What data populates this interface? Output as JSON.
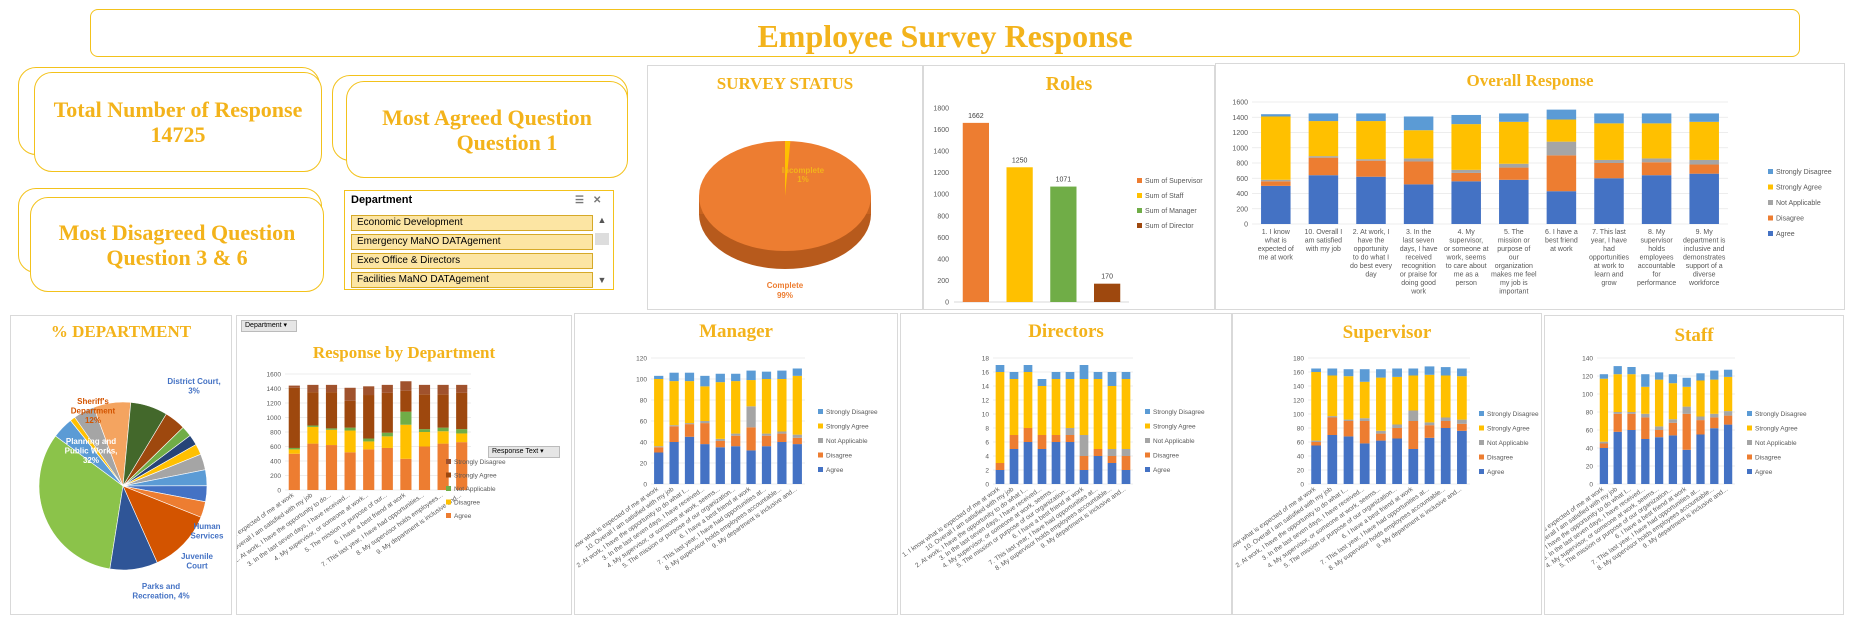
{
  "header": {
    "title": "Employee Survey Response"
  },
  "kpis": {
    "total": {
      "label": "Total Number of Response",
      "value": "14725"
    },
    "agreed": {
      "label": "Most Agreed Question",
      "value": "Question 1"
    },
    "disagreed": {
      "label": "Most Disagreed Question",
      "value": "Question 3 & 6"
    }
  },
  "slicer": {
    "title": "Department",
    "items": [
      "Economic Development",
      "Emergency MaNO DATAgement",
      "Exec Office & Directors",
      "Facilities MaNO DATAgement"
    ]
  },
  "colors": {
    "agree": "#4472c4",
    "disagree": "#ed7d31",
    "na": "#a5a5a5",
    "sagree": "#ffc000",
    "sdisagree": "#5b9bd5",
    "green": "#70ad47",
    "darkred": "#9e480e",
    "darkgreen": "#43682b",
    "gold": "#f3b31b"
  },
  "labels": {
    "pivot_dept_button": "Department",
    "pivot_resp_button": "Response Text"
  },
  "chart_data": [
    {
      "id": "survey_status",
      "type": "pie",
      "title": "SURVEY STATUS",
      "slices": [
        {
          "name": "Complete",
          "value": 99,
          "label": "Complete",
          "pct": "99%",
          "color": "#ed7d31"
        },
        {
          "name": "Incomplete",
          "value": 1,
          "label": "Incomplete",
          "pct": "1%",
          "color": "#ffc000"
        }
      ]
    },
    {
      "id": "roles",
      "type": "bar",
      "title": "Roles",
      "ylim": [
        0,
        1800
      ],
      "yticks": [
        "0",
        "200",
        "400",
        "600",
        "800",
        "1000",
        "1200",
        "1400",
        "1600",
        "1800"
      ],
      "categories": [
        "Sum of Supervisor",
        "Sum of Staff",
        "Sum of Manager",
        "Sum of Director"
      ],
      "values": [
        1662,
        1250,
        1071,
        170
      ],
      "colors": [
        "#ed7d31",
        "#ffc000",
        "#70ad47",
        "#9e480e"
      ]
    },
    {
      "id": "overall",
      "type": "bar",
      "stacked": true,
      "title": "Overall Response",
      "ylim": [
        0,
        1600
      ],
      "yticks": [
        "0",
        "200",
        "400",
        "600",
        "800",
        "1000",
        "1200",
        "1400",
        "1600"
      ],
      "categories": [
        "1. I know what is expected of me at work",
        "10. Overall I am satisfied with my job",
        "2. At work, I have the opportunity to do what I do best every day",
        "3. In the last seven days, I have received recognition or praise for doing good work",
        "4. My supervisor, or someone at work, seems to care about me as a person",
        "5. The mission or purpose of our organization makes me feel my job is important",
        "6. I have a best friend at work",
        "7. This last year, I have had opportunities at work to learn and grow",
        "8. My supervisor holds employees accountable for performance",
        "9. My department is inclusive and demonstrates support of a diverse workforce"
      ],
      "series": [
        {
          "name": "Agree",
          "color": "#4472c4",
          "values": [
            500,
            640,
            620,
            520,
            560,
            580,
            430,
            600,
            640,
            660
          ]
        },
        {
          "name": "Disagree",
          "color": "#ed7d31",
          "values": [
            60,
            230,
            210,
            300,
            110,
            160,
            470,
            200,
            170,
            120
          ]
        },
        {
          "name": "Not Applicable",
          "color": "#a5a5a5",
          "values": [
            20,
            20,
            20,
            40,
            40,
            50,
            180,
            40,
            50,
            60
          ]
        },
        {
          "name": "Strongly Agree",
          "color": "#ffc000",
          "values": [
            830,
            460,
            500,
            370,
            600,
            550,
            290,
            480,
            460,
            500
          ]
        },
        {
          "name": "Strongly Disagree",
          "color": "#5b9bd5",
          "values": [
            30,
            100,
            100,
            180,
            120,
            110,
            130,
            130,
            130,
            110
          ]
        }
      ],
      "legend": [
        "Strongly Disagree",
        "Strongly Agree",
        "Not Applicable",
        "Disagree",
        "Agree"
      ]
    },
    {
      "id": "pct_department",
      "type": "pie",
      "title": "% DEPARTMENT",
      "slices": [
        {
          "name": "Planning and Public Works",
          "value": 32,
          "label": "Planning and Public Works, 32%",
          "color": "#8bc34a"
        },
        {
          "name": "Parks and Recreation",
          "value": 4,
          "label": "Parks and Recreation, 4%",
          "color": "#5b9bd5"
        },
        {
          "name": "Juvenile Court",
          "value": 1,
          "label": "Juvenile Court",
          "color": "#ffc000"
        },
        {
          "name": "Human Services",
          "value": 4,
          "label": "Human Services",
          "color": "#a5a5a5"
        },
        {
          "name": "s5",
          "value": 7,
          "label": "",
          "color": "#f4a460"
        },
        {
          "name": "s6",
          "value": 7,
          "label": "",
          "color": "#43682b"
        },
        {
          "name": "s7",
          "value": 4,
          "label": "",
          "color": "#9e480e"
        },
        {
          "name": "s8",
          "value": 2,
          "label": "",
          "color": "#70ad47"
        },
        {
          "name": "s9",
          "value": 2,
          "label": "",
          "color": "#264478"
        },
        {
          "name": "s10",
          "value": 2,
          "label": "",
          "color": "#ffc000"
        },
        {
          "name": "s11",
          "value": 3,
          "label": "",
          "color": "#a5a5a5"
        },
        {
          "name": "s12",
          "value": 3,
          "label": "",
          "color": "#5b9bd5"
        },
        {
          "name": "District Court",
          "value": 3,
          "label": "District Court, 3%",
          "color": "#4472c4"
        },
        {
          "name": "s14",
          "value": 3,
          "label": "",
          "color": "#ed7d31"
        },
        {
          "name": "Sheriff's Department",
          "value": 12,
          "label": "Sheriff's Department 12%",
          "color": "#d35400"
        },
        {
          "name": "s16",
          "value": 9,
          "label": "",
          "color": "#2f5597"
        }
      ]
    },
    {
      "id": "response_by_department",
      "type": "bar",
      "stacked": true,
      "title": "Response by Department",
      "ylim": [
        0,
        1600
      ],
      "yticks": [
        "0",
        "200",
        "400",
        "600",
        "800",
        "1000",
        "1200",
        "1400",
        "1600"
      ],
      "categories": [
        "1. I know what is expected of me at work",
        "10. Overall I am satisfied with my job",
        "2. At work, I have the opportunity to do...",
        "3. In the last seven days, I have received...",
        "4. My supervisor, or someone at work...",
        "5. The mission or purpose of our...",
        "6. I have a best friend at work",
        "7. This last year, I have had opportunities...",
        "8. My supervisor holds employees...",
        "9. My department is inclusive and..."
      ],
      "series": [
        {
          "name": "Agree",
          "color": "#ed7d31",
          "values": [
            500,
            640,
            620,
            520,
            560,
            580,
            430,
            600,
            640,
            660
          ]
        },
        {
          "name": "Disagree",
          "color": "#ffc000",
          "values": [
            60,
            230,
            210,
            300,
            110,
            160,
            470,
            200,
            170,
            120
          ]
        },
        {
          "name": "Not Applicable",
          "color": "#70ad47",
          "values": [
            20,
            20,
            20,
            40,
            40,
            50,
            180,
            40,
            50,
            60
          ]
        },
        {
          "name": "Strongly Agree",
          "color": "#9e480e",
          "values": [
            830,
            460,
            500,
            370,
            600,
            550,
            290,
            480,
            460,
            500
          ]
        },
        {
          "name": "Strongly Disagree",
          "color": "#a0522d",
          "values": [
            30,
            100,
            100,
            180,
            120,
            110,
            130,
            130,
            130,
            110
          ]
        }
      ],
      "legend": [
        "Strongly Disagree",
        "Strongly Agree",
        "Not Applicable",
        "Disagree",
        "Agree"
      ]
    },
    {
      "id": "manager",
      "type": "bar",
      "stacked": true,
      "title": "Manager",
      "ylim": [
        0,
        120
      ],
      "yticks": [
        "0",
        "20",
        "40",
        "60",
        "80",
        "100",
        "120"
      ],
      "categories": [
        "1. I know what is expected of me at work",
        "10. Overall I am satisfied with my job",
        "2. At work, I have the opportunity to do what I...",
        "3. In the last seven days, I have received...",
        "4. My supervisor, or someone at work, seems...",
        "5. The mission or purpose of our organization...",
        "6. I have a best friend at work",
        "7. This last year, I have had opportunities at...",
        "8. My supervisor holds employees accountable...",
        "9. My department is inclusive and..."
      ],
      "series": [
        {
          "name": "Agree",
          "color": "#4472c4",
          "values": [
            30,
            40,
            45,
            38,
            35,
            36,
            32,
            36,
            40,
            38
          ]
        },
        {
          "name": "Disagree",
          "color": "#ed7d31",
          "values": [
            5,
            15,
            12,
            20,
            6,
            10,
            22,
            10,
            8,
            6
          ]
        },
        {
          "name": "Not Applicable",
          "color": "#a5a5a5",
          "values": [
            1,
            1,
            1,
            2,
            2,
            2,
            20,
            2,
            2,
            3
          ]
        },
        {
          "name": "Strongly Agree",
          "color": "#ffc000",
          "values": [
            64,
            42,
            40,
            33,
            54,
            50,
            25,
            52,
            50,
            56
          ]
        },
        {
          "name": "Strongly Disagree",
          "color": "#5b9bd5",
          "values": [
            3,
            8,
            8,
            10,
            8,
            7,
            9,
            7,
            8,
            7
          ]
        }
      ],
      "legend": [
        "Strongly Disagree",
        "Strongly Agree",
        "Not Applicable",
        "Disagree",
        "Agree"
      ]
    },
    {
      "id": "directors",
      "type": "bar",
      "stacked": true,
      "title": "Directors",
      "ylim": [
        0,
        18
      ],
      "yticks": [
        "0",
        "2",
        "4",
        "6",
        "8",
        "10",
        "12",
        "14",
        "16",
        "18"
      ],
      "categories": [
        "1. I know what is expected of me at work",
        "10. Overall I am satisfied with my job",
        "2. At work, I have the opportunity to do what I...",
        "3. In the last seven days, I have received...",
        "4. My supervisor, or someone at work, seems...",
        "5. The mission or purpose of our organization...",
        "6. I have a best friend at work",
        "7. This last year, I have had opportunities at...",
        "8. My supervisor holds employees accountable...",
        "9. My department is inclusive and..."
      ],
      "series": [
        {
          "name": "Agree",
          "color": "#4472c4",
          "values": [
            2,
            5,
            6,
            5,
            6,
            6,
            2,
            4,
            3,
            2
          ]
        },
        {
          "name": "Disagree",
          "color": "#ed7d31",
          "values": [
            1,
            2,
            2,
            2,
            1,
            1,
            2,
            1,
            1,
            2
          ]
        },
        {
          "name": "Not Applicable",
          "color": "#a5a5a5",
          "values": [
            0,
            0,
            0,
            0,
            0,
            1,
            3,
            0,
            1,
            1
          ]
        },
        {
          "name": "Strongly Agree",
          "color": "#ffc000",
          "values": [
            13,
            8,
            8,
            7,
            8,
            7,
            8,
            10,
            9,
            10
          ]
        },
        {
          "name": "Strongly Disagree",
          "color": "#5b9bd5",
          "values": [
            1,
            1,
            1,
            1,
            1,
            1,
            2,
            1,
            2,
            1
          ]
        }
      ],
      "legend": [
        "Strongly Disagree",
        "Strongly Agree",
        "Not Applicable",
        "Disagree",
        "Agree"
      ]
    },
    {
      "id": "supervisor",
      "type": "bar",
      "stacked": true,
      "title": "Supervisor",
      "ylim": [
        0,
        180
      ],
      "yticks": [
        "0",
        "20",
        "40",
        "60",
        "80",
        "100",
        "120",
        "140",
        "160",
        "180"
      ],
      "categories": [
        "1. I know what is expected of me at work",
        "10. Overall I am satisfied with my job",
        "2. At work, I have the opportunity to do what I...",
        "3. In the last seven days, I have received...",
        "4. My supervisor, or someone at work, seems...",
        "5. The mission or purpose of our organization...",
        "6. I have a best friend at work",
        "7. This last year, I have had opportunities at...",
        "8. My supervisor holds employees accountable...",
        "9. My department is inclusive and..."
      ],
      "series": [
        {
          "name": "Agree",
          "color": "#4472c4",
          "values": [
            55,
            70,
            68,
            58,
            62,
            65,
            50,
            66,
            80,
            76
          ]
        },
        {
          "name": "Disagree",
          "color": "#ed7d31",
          "values": [
            5,
            25,
            22,
            32,
            10,
            15,
            40,
            18,
            10,
            10
          ]
        },
        {
          "name": "Not Applicable",
          "color": "#a5a5a5",
          "values": [
            2,
            2,
            2,
            4,
            4,
            5,
            15,
            4,
            5,
            6
          ]
        },
        {
          "name": "Strongly Agree",
          "color": "#ffc000",
          "values": [
            98,
            58,
            62,
            52,
            76,
            68,
            50,
            68,
            60,
            62
          ]
        },
        {
          "name": "Strongly Disagree",
          "color": "#5b9bd5",
          "values": [
            5,
            10,
            10,
            18,
            12,
            12,
            10,
            12,
            12,
            11
          ]
        }
      ],
      "legend": [
        "Strongly Disagree",
        "Strongly Agree",
        "Not Applicable",
        "Disagree",
        "Agree"
      ]
    },
    {
      "id": "staff",
      "type": "bar",
      "stacked": true,
      "title": "Staff",
      "ylim": [
        0,
        140
      ],
      "yticks": [
        "0",
        "20",
        "40",
        "60",
        "80",
        "100",
        "120",
        "140"
      ],
      "categories": [
        "1. I know what is expected of me at work",
        "10. Overall I am satisfied with my job",
        "2. At work, I have the opportunity to do what I...",
        "3. In the last seven days, I have received...",
        "4. My supervisor, or someone at work, seems...",
        "5. The mission or purpose of our organization...",
        "6. I have a best friend at work",
        "7. This last year, I have had opportunities at...",
        "8. My supervisor holds employees accountable...",
        "9. My department is inclusive and..."
      ],
      "series": [
        {
          "name": "Agree",
          "color": "#4472c4",
          "values": [
            40,
            58,
            60,
            50,
            52,
            54,
            38,
            55,
            62,
            66
          ]
        },
        {
          "name": "Disagree",
          "color": "#ed7d31",
          "values": [
            5,
            20,
            18,
            24,
            8,
            14,
            40,
            16,
            12,
            10
          ]
        },
        {
          "name": "Not Applicable",
          "color": "#a5a5a5",
          "values": [
            2,
            2,
            2,
            4,
            4,
            4,
            8,
            4,
            4,
            5
          ]
        },
        {
          "name": "Strongly Agree",
          "color": "#ffc000",
          "values": [
            70,
            42,
            42,
            30,
            52,
            40,
            22,
            40,
            38,
            38
          ]
        },
        {
          "name": "Strongly Disagree",
          "color": "#5b9bd5",
          "values": [
            5,
            9,
            8,
            14,
            8,
            10,
            10,
            8,
            10,
            8
          ]
        }
      ],
      "legend": [
        "Strongly Disagree",
        "Strongly Agree",
        "Not Applicable",
        "Disagree",
        "Agree"
      ]
    }
  ]
}
